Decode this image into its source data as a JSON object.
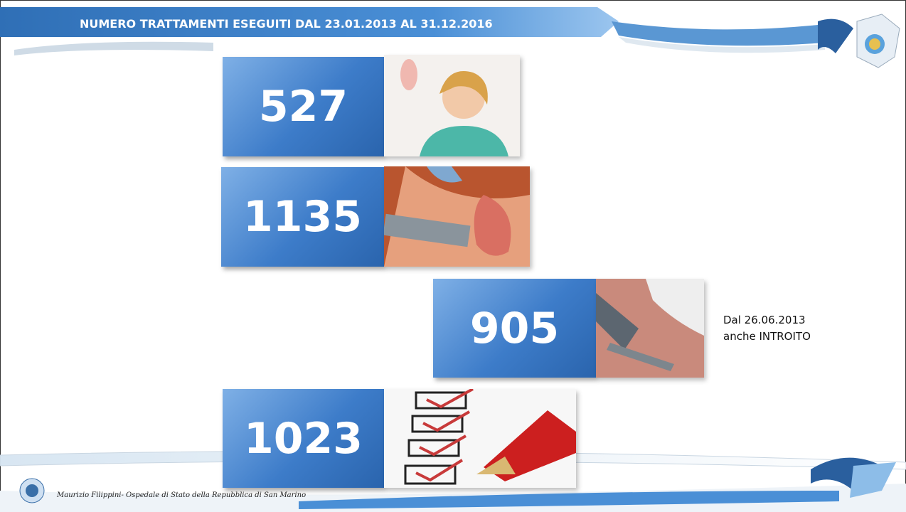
{
  "header": {
    "title": "NUMERO TRATTAMENTI ESEGUITI DAL 23.01.2013 AL 31.12.2016"
  },
  "cards": [
    {
      "value": 527
    },
    {
      "value": 1135
    },
    {
      "value": 905,
      "note": [
        "Dal 26.06.2013",
        "anche INTROITO"
      ]
    },
    {
      "value": 1023
    }
  ],
  "footer": {
    "text": "Maurizio Filippini- Ospedale di Stato della Repubblica di San Marino"
  }
}
